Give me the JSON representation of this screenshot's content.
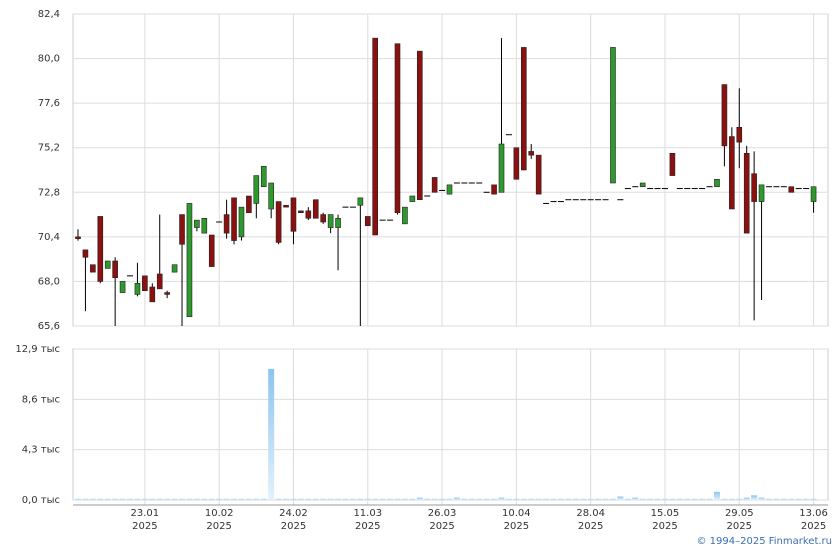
{
  "chart_data": {
    "type": "candlestick",
    "categories": [
      null,
      null,
      null,
      null,
      null,
      null,
      null,
      null,
      null,
      "23.01\n2025",
      null,
      null,
      null,
      null,
      null,
      null,
      null,
      null,
      null,
      "10.02\n2025",
      null,
      null,
      null,
      null,
      null,
      null,
      null,
      null,
      null,
      "24.02\n2025",
      null,
      null,
      null,
      null,
      null,
      null,
      null,
      null,
      null,
      "11.03\n2025",
      null,
      null,
      null,
      null,
      null,
      null,
      null,
      null,
      null,
      "26.03\n2025",
      null,
      null,
      null,
      null,
      null,
      null,
      null,
      null,
      null,
      "10.04\n2025",
      null,
      null,
      null,
      null,
      null,
      null,
      null,
      null,
      null,
      "28.04\n2025",
      null,
      null,
      null,
      null,
      null,
      null,
      null,
      null,
      null,
      "15.05\n2025",
      null,
      null,
      null,
      null,
      null,
      null,
      null,
      null,
      null,
      "29.05\n2025",
      null,
      null,
      null,
      null,
      null,
      null,
      null,
      null,
      null,
      "13.06\n2025"
    ],
    "open": [
      70.4,
      69.7,
      68.9,
      71.5,
      68.7,
      69.1,
      67.4,
      68.3,
      67.3,
      68.3,
      67.7,
      68.4,
      67.4,
      68.5,
      71.6,
      66.1,
      70.9,
      70.6,
      70.5,
      71.2,
      71.6,
      72.5,
      70.4,
      72.6,
      72.2,
      73.1,
      71.9,
      72.3,
      72.1,
      72.5,
      71.8,
      71.8,
      72.4,
      71.6,
      70.9,
      70.9,
      72.0,
      72.0,
      72.1,
      71.5,
      81.1,
      71.3,
      71.3,
      80.8,
      71.1,
      72.3,
      80.4,
      72.6,
      73.6,
      72.9,
      72.7,
      73.3,
      73.3,
      73.3,
      73.3,
      72.8,
      73.2,
      72.8,
      75.9,
      75.2,
      80.6,
      75.0,
      74.8,
      72.2,
      72.3,
      72.3,
      72.4,
      72.4,
      72.4,
      72.4,
      72.4,
      72.4,
      73.3,
      72.4,
      73.0,
      73.1,
      73.1,
      73.0,
      73.0,
      73.0,
      74.9,
      73.0,
      73.0,
      73.0,
      73.0,
      73.1,
      73.1,
      78.6,
      75.8,
      76.3,
      74.9,
      73.8,
      72.3,
      73.1,
      73.1,
      73.1,
      73.1,
      73.0,
      73.0,
      72.3
    ],
    "high": [
      70.8,
      69.7,
      68.9,
      71.5,
      69.1,
      69.3,
      68.0,
      68.3,
      69.0,
      68.3,
      67.9,
      71.6,
      67.5,
      68.9,
      71.6,
      72.2,
      71.3,
      71.4,
      70.5,
      71.2,
      72.4,
      72.5,
      72.0,
      72.6,
      73.7,
      74.2,
      73.3,
      72.3,
      72.1,
      72.5,
      71.8,
      72.0,
      72.4,
      71.7,
      71.6,
      71.6,
      72.0,
      72.0,
      72.5,
      71.5,
      81.1,
      71.3,
      71.3,
      80.8,
      72.0,
      72.6,
      80.4,
      72.6,
      73.6,
      72.9,
      73.2,
      73.3,
      73.3,
      73.3,
      73.3,
      72.8,
      73.2,
      81.1,
      75.9,
      75.2,
      80.6,
      75.4,
      74.8,
      72.2,
      72.3,
      72.3,
      72.4,
      72.4,
      72.4,
      72.4,
      72.4,
      72.4,
      80.6,
      72.4,
      73.0,
      73.1,
      73.3,
      73.0,
      73.0,
      73.0,
      74.9,
      73.0,
      73.0,
      73.0,
      73.0,
      73.1,
      73.5,
      78.6,
      76.3,
      78.4,
      75.3,
      75.0,
      73.2,
      73.1,
      73.1,
      73.1,
      73.1,
      73.0,
      73.0,
      73.1
    ],
    "low": [
      70.2,
      66.4,
      68.5,
      67.9,
      68.7,
      65.6,
      67.4,
      68.3,
      67.2,
      67.5,
      66.9,
      67.6,
      67.1,
      68.5,
      65.6,
      66.1,
      70.7,
      70.6,
      68.8,
      71.2,
      70.3,
      70.0,
      70.2,
      71.7,
      71.4,
      73.1,
      71.4,
      70.0,
      72.0,
      70.0,
      71.7,
      71.3,
      71.4,
      71.1,
      70.6,
      68.6,
      72.0,
      72.0,
      65.6,
      71.0,
      70.5,
      71.3,
      71.3,
      71.6,
      71.1,
      72.3,
      72.4,
      72.6,
      72.8,
      72.9,
      72.7,
      73.3,
      73.3,
      73.3,
      73.3,
      72.8,
      72.7,
      72.8,
      75.9,
      73.5,
      74.0,
      74.6,
      72.7,
      72.2,
      72.3,
      72.3,
      72.4,
      72.4,
      72.4,
      72.4,
      72.4,
      72.4,
      73.3,
      72.4,
      73.0,
      73.1,
      73.1,
      73.0,
      73.0,
      73.0,
      73.7,
      73.0,
      73.0,
      73.0,
      73.0,
      73.1,
      73.1,
      74.2,
      71.9,
      74.1,
      70.6,
      65.9,
      67.0,
      73.1,
      73.1,
      73.1,
      72.8,
      73.0,
      73.0,
      71.7
    ],
    "close": [
      70.3,
      69.3,
      68.5,
      68.0,
      69.1,
      68.2,
      68.0,
      68.3,
      67.9,
      67.5,
      66.9,
      67.6,
      67.3,
      68.9,
      70.0,
      72.2,
      71.3,
      71.4,
      68.8,
      71.2,
      70.6,
      70.2,
      72.0,
      71.7,
      73.7,
      74.2,
      73.3,
      70.1,
      72.0,
      70.7,
      71.7,
      71.4,
      71.4,
      71.2,
      71.6,
      71.4,
      72.0,
      72.0,
      72.5,
      71.0,
      70.5,
      71.3,
      71.3,
      71.7,
      72.0,
      72.6,
      72.4,
      72.6,
      72.8,
      72.9,
      73.2,
      73.3,
      73.3,
      73.3,
      73.3,
      72.8,
      72.7,
      75.4,
      75.9,
      73.5,
      74.0,
      74.8,
      72.7,
      72.2,
      72.3,
      72.3,
      72.4,
      72.4,
      72.4,
      72.4,
      72.4,
      72.4,
      80.6,
      72.4,
      73.0,
      73.1,
      73.3,
      73.0,
      73.0,
      73.0,
      73.7,
      73.0,
      73.0,
      73.0,
      73.0,
      73.1,
      73.5,
      75.3,
      71.9,
      75.5,
      70.6,
      72.3,
      73.2,
      73.1,
      73.1,
      73.1,
      72.8,
      73.0,
      73.0,
      73.1
    ],
    "up_color": "#2e9a2e",
    "down_color": "#8b1111",
    "flat_color": "#000000",
    "ylim": [
      65.6,
      82.4
    ],
    "yticks": [
      {
        "value": 65.6,
        "label": "65,6"
      },
      {
        "value": 68.0,
        "label": "68,0"
      },
      {
        "value": 70.4,
        "label": "70,4"
      },
      {
        "value": 72.8,
        "label": "72,8"
      },
      {
        "value": 75.2,
        "label": "75,2"
      },
      {
        "value": 77.6,
        "label": "77,6"
      },
      {
        "value": 80.0,
        "label": "80,0"
      },
      {
        "value": 82.4,
        "label": "82,4"
      }
    ],
    "grid": true,
    "volume": {
      "color": "#86bfee",
      "values": [
        0.1,
        0.1,
        0.1,
        0.1,
        0.1,
        0.1,
        0.1,
        0.1,
        0.1,
        0.1,
        0.1,
        0.1,
        0.1,
        0.1,
        0.1,
        0.1,
        0.1,
        0.1,
        0.1,
        0.1,
        0.1,
        0.1,
        0.1,
        0.1,
        0.1,
        0.1,
        11.2,
        0.1,
        0.1,
        0.1,
        0.1,
        0.1,
        0.1,
        0.1,
        0.1,
        0.1,
        0.1,
        0.1,
        0.1,
        0.1,
        0.1,
        0.1,
        0.1,
        0.1,
        0.1,
        0.1,
        0.2,
        0.1,
        0.1,
        0.1,
        0.1,
        0.2,
        0.1,
        0.1,
        0.1,
        0.1,
        0.1,
        0.2,
        0.1,
        0.1,
        0.1,
        0.1,
        0.1,
        0.1,
        0.1,
        0.1,
        0.1,
        0.1,
        0.1,
        0.1,
        0.1,
        0.1,
        0.1,
        0.3,
        0.1,
        0.2,
        0.1,
        0.1,
        0.1,
        0.1,
        0.1,
        0.1,
        0.1,
        0.1,
        0.1,
        0.1,
        0.7,
        0.1,
        0.1,
        0.1,
        0.2,
        0.4,
        0.2,
        0.1,
        0.1,
        0.1,
        0.1,
        0.1,
        0.1,
        0.1
      ],
      "ylim": [
        0,
        12.9
      ],
      "yticks": [
        {
          "value": 0,
          "label": "0,0 тыс"
        },
        {
          "value": 4.3,
          "label": "4,3 тыс"
        },
        {
          "value": 8.6,
          "label": "8,6 тыс"
        },
        {
          "value": 12.9,
          "label": "12,9 тыс"
        }
      ]
    }
  },
  "source": "© 1994–2025 Finmarket.ru"
}
